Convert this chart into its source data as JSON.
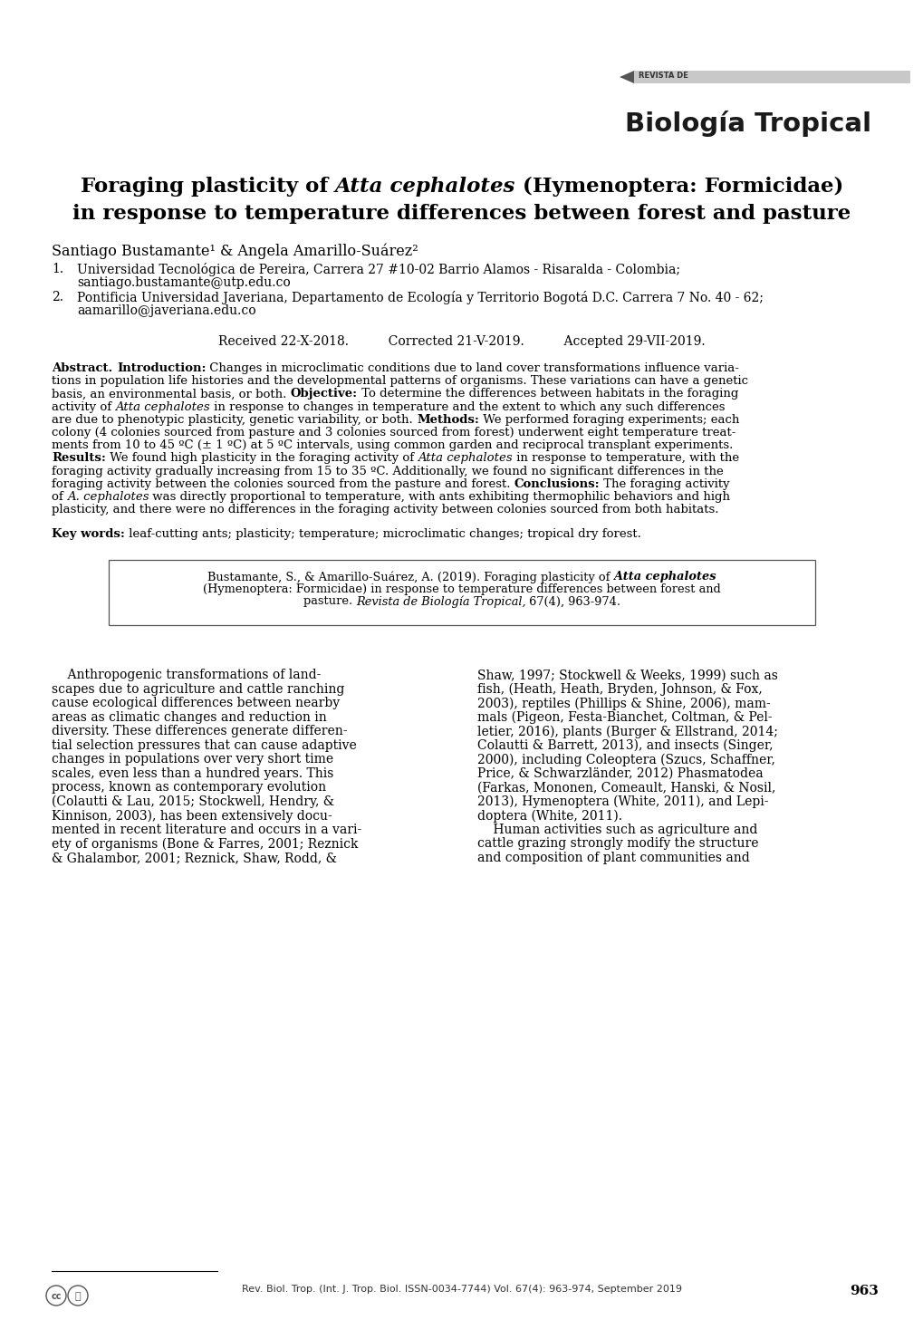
{
  "background_color": "#ffffff",
  "journal_name_small": "REVISTA DE",
  "journal_name_large": "Biología Tropical",
  "title_normal1": "Foraging plasticity of ",
  "title_italic": "Atta cephalotes",
  "title_normal2": " (Hymenoptera: Formicidae)",
  "title_line2": "in response to temperature differences between forest and pasture",
  "author_line": "Santiago Bustamante¹ & Angela Amarillo-Suárez²",
  "affil1_num": "1.",
  "affil1_text": "Universidad Tecnológica de Pereira, Carrera 27 #10-02 Barrio Alamos - Risaralda - Colombia;",
  "affil1b_text": "santiago.bustamante@utp.edu.co",
  "affil2_num": "2.",
  "affil2_text": "Pontificia Universidad Javeriana, Departamento de Ecología y Territorio Bogotá D.C. Carrera 7 No. 40 - 62;",
  "affil2b_text": "aamarillo@javeriana.edu.co",
  "dates": "Received 22-X-2018.          Corrected 21-V-2019.          Accepted 29-VII-2019.",
  "abstract_line1": "Abstract. Introduction: Changes in microclimatic conditions due to land cover transformations influence varia-",
  "abstract_line2": "tions in population life histories and the developmental patterns of organisms. These variations can have a genetic",
  "abstract_line3": "basis, an environmental basis, or both. Objective: To determine the differences between habitats in the foraging",
  "abstract_line4": "activity of Atta cephalotes in response to changes in temperature and the extent to which any such differences",
  "abstract_line5": "are due to phenotypic plasticity, genetic variability, or both. Methods: We performed foraging experiments; each",
  "abstract_line6": "colony (4 colonies sourced from pasture and 3 colonies sourced from forest) underwent eight temperature treat-",
  "abstract_line7": "ments from 10 to 45 ºC (± 1 ºC) at 5 ºC intervals, using common garden and reciprocal transplant experiments.",
  "abstract_line8": "Results: We found high plasticity in the foraging activity of Atta cephalotes in response to temperature, with the",
  "abstract_line9": "foraging activity gradually increasing from 15 to 35 ºC. Additionally, we found no significant differences in the",
  "abstract_line10": "foraging activity between the colonies sourced from the pasture and forest. Conclusions: The foraging activity",
  "abstract_line11": "of A. cephalotes was directly proportional to temperature, with ants exhibiting thermophilic behaviors and high",
  "abstract_line12": "plasticity, and there were no differences in the foraging activity between colonies sourced from both habitats.",
  "keywords_bold": "Key words:",
  "keywords_text": " leaf-cutting ants; plasticity; temperature; microclimatic changes; tropical dry forest.",
  "cite_line1_pre": "Bustamante, S., & Amarillo-Suárez, A. (2019). Foraging plasticity of ",
  "cite_line1_italic": "Atta cephalotes",
  "cite_line2": "(Hymenoptera: Formicidae) in response to temperature differences between forest and",
  "cite_line3_pre": "pasture. ",
  "cite_line3_italic": "Revista de Biología Tropical,",
  "cite_line3_post": " 67(4), 963-974.",
  "body_col1_lines": [
    "    Anthropogenic transformations of land-",
    "scapes due to agriculture and cattle ranching",
    "cause ecological differences between nearby",
    "areas as climatic changes and reduction in",
    "diversity. These differences generate differen-",
    "tial selection pressures that can cause adaptive",
    "changes in populations over very short time",
    "scales, even less than a hundred years. This",
    "process, known as contemporary evolution",
    "(Colautti & Lau, 2015; Stockwell, Hendry, &",
    "Kinnison, 2003), has been extensively docu-",
    "mented in recent literature and occurs in a vari-",
    "ety of organisms (Bone & Farres, 2001; Reznick",
    "& Ghalambor, 2001; Reznick, Shaw, Rodd, &"
  ],
  "body_col2_lines": [
    "Shaw, 1997; Stockwell & Weeks, 1999) such as",
    "fish, (Heath, Heath, Bryden, Johnson, & Fox,",
    "2003), reptiles (Phillips & Shine, 2006), mam-",
    "mals (Pigeon, Festa-Bianchet, Coltman, & Pel-",
    "letier, 2016), plants (Burger & Ellstrand, 2014;",
    "Colautti & Barrett, 2013), and insects (Singer,",
    "2000), including Coleoptera (Szucs, Schaffner,",
    "Price, & Schwarzländer, 2012) Phasmatodea",
    "(Farkas, Mononen, Comeault, Hanski, & Nosil,",
    "2013), Hymenoptera (White, 2011), and Lepi-",
    "doptera (White, 2011).",
    "    Human activities such as agriculture and",
    "cattle grazing strongly modify the structure",
    "and composition of plant communities and"
  ],
  "footer_text": "Rev. Biol. Trop. (Int. J. Trop. Biol. ISSN-0034-7744) Vol. 67(4): 963-974, September 2019",
  "footer_page": "963"
}
